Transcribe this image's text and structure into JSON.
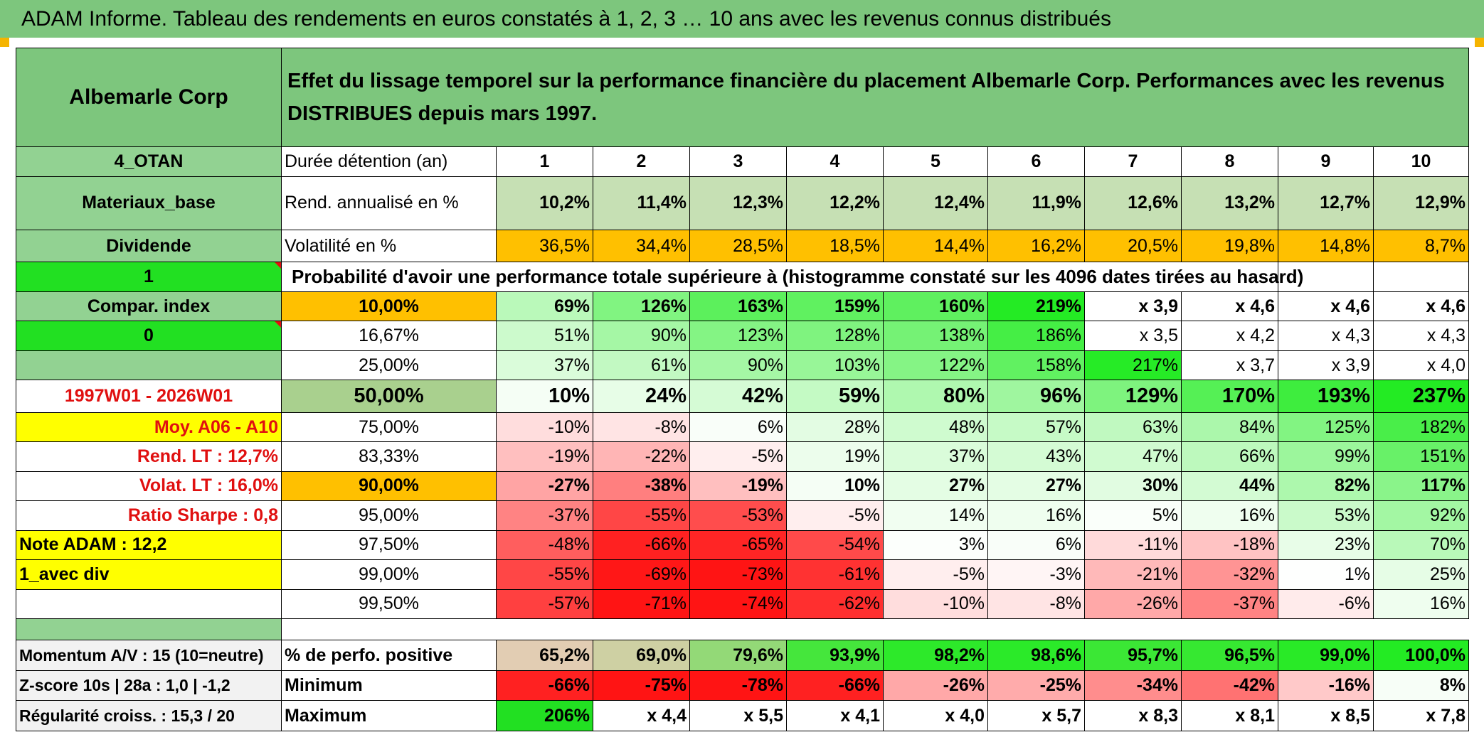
{
  "title": "ADAM Informe. Tableau des rendements en euros constatés à 1, 2, 3 … 10 ans avec les revenus connus distribués",
  "left_panel": {
    "name": "Albemarle Corp",
    "code": "4_OTAN",
    "sector": "Materiaux_base",
    "type": "Dividende",
    "flag1": "1",
    "compar": "Compar. index",
    "flag0": "0",
    "period": "1997W01 - 2026W01",
    "moy": "Moy. A06 - A10",
    "rend_lt": "Rend. LT :   12,7%",
    "volat_lt": "Volat. LT :   16,0%",
    "sharpe": "Ratio Sharpe :    0,8",
    "note": "Note ADAM : 12,2",
    "avec_div": "1_avec div",
    "momentum": "Momentum A/V : 15 (10=neutre)",
    "zscore": "Z-score 10s | 28a : 1,0 | -1,2",
    "regularite": "Régularité croiss. : 15,3 / 20"
  },
  "description": "Effet du lissage temporel sur la performance financière du placement Albemarle Corp. Performances avec les revenus DISTRIBUES depuis mars 1997.",
  "header": {
    "label": "Durée détention (an)",
    "years": [
      "1",
      "2",
      "3",
      "4",
      "5",
      "6",
      "7",
      "8",
      "9",
      "10"
    ]
  },
  "rendement": {
    "label": "Rend. annualisé en %",
    "values": [
      "10,2%",
      "11,4%",
      "12,3%",
      "12,2%",
      "12,4%",
      "11,9%",
      "12,6%",
      "13,2%",
      "12,7%",
      "12,9%"
    ]
  },
  "volatilite": {
    "label": "Volatilité en %",
    "values": [
      "36,5%",
      "34,4%",
      "28,5%",
      "18,5%",
      "14,4%",
      "16,2%",
      "20,5%",
      "19,8%",
      "14,8%",
      "8,7%"
    ]
  },
  "probability_title": "Probabilité d'avoir une performance totale supérieure à (histogramme constaté sur les 4096 dates tirées au hasard)",
  "probability_rows": [
    {
      "label": "10,00%",
      "values": [
        "69%",
        "126%",
        "163%",
        "159%",
        "160%",
        "219%",
        "x 3,9",
        "x 4,6",
        "x 4,6",
        "x 4,6"
      ]
    },
    {
      "label": "16,67%",
      "values": [
        "51%",
        "90%",
        "123%",
        "128%",
        "138%",
        "186%",
        "x 3,5",
        "x 4,2",
        "x 4,3",
        "x 4,3"
      ]
    },
    {
      "label": "25,00%",
      "values": [
        "37%",
        "61%",
        "90%",
        "103%",
        "122%",
        "158%",
        "217%",
        "x 3,7",
        "x 3,9",
        "x 4,0"
      ]
    },
    {
      "label": "50,00%",
      "values": [
        "10%",
        "24%",
        "42%",
        "59%",
        "80%",
        "96%",
        "129%",
        "170%",
        "193%",
        "237%"
      ]
    },
    {
      "label": "75,00%",
      "values": [
        "-10%",
        "-8%",
        "6%",
        "28%",
        "48%",
        "57%",
        "63%",
        "84%",
        "125%",
        "182%"
      ]
    },
    {
      "label": "83,33%",
      "values": [
        "-19%",
        "-22%",
        "-5%",
        "19%",
        "37%",
        "43%",
        "47%",
        "66%",
        "99%",
        "151%"
      ]
    },
    {
      "label": "90,00%",
      "values": [
        "-27%",
        "-38%",
        "-19%",
        "10%",
        "27%",
        "27%",
        "30%",
        "44%",
        "82%",
        "117%"
      ]
    },
    {
      "label": "95,00%",
      "values": [
        "-37%",
        "-55%",
        "-53%",
        "-5%",
        "14%",
        "16%",
        "5%",
        "16%",
        "53%",
        "92%"
      ]
    },
    {
      "label": "97,50%",
      "values": [
        "-48%",
        "-66%",
        "-65%",
        "-54%",
        "3%",
        "6%",
        "-11%",
        "-18%",
        "23%",
        "70%"
      ]
    },
    {
      "label": "99,00%",
      "values": [
        "-55%",
        "-69%",
        "-73%",
        "-61%",
        "-5%",
        "-3%",
        "-21%",
        "-32%",
        "1%",
        "25%"
      ]
    },
    {
      "label": "99,50%",
      "values": [
        "-57%",
        "-71%",
        "-74%",
        "-62%",
        "-10%",
        "-8%",
        "-26%",
        "-37%",
        "-6%",
        "16%"
      ]
    }
  ],
  "summary_rows": [
    {
      "label": "% de perfo. positive",
      "values": [
        "65,2%",
        "69,0%",
        "79,6%",
        "93,9%",
        "98,2%",
        "98,6%",
        "95,7%",
        "96,5%",
        "99,0%",
        "100,0%"
      ]
    },
    {
      "label": "Minimum",
      "values": [
        "-66%",
        "-75%",
        "-78%",
        "-66%",
        "-26%",
        "-25%",
        "-34%",
        "-42%",
        "-16%",
        "8%"
      ]
    },
    {
      "label": "Maximum",
      "values": [
        "206%",
        "x 4,4",
        "x 5,5",
        "x 4,1",
        "x 4,0",
        "x 5,7",
        "x 8,3",
        "x 8,1",
        "x 8,5",
        "x 7,8"
      ]
    }
  ],
  "colors": {
    "header_green": "#7dc67d",
    "bright_green": "#22e022",
    "orange": "#ffc000",
    "yellow": "#ffff00",
    "red_text": "#e01010",
    "rendement_fill": "#c6e0b4"
  }
}
